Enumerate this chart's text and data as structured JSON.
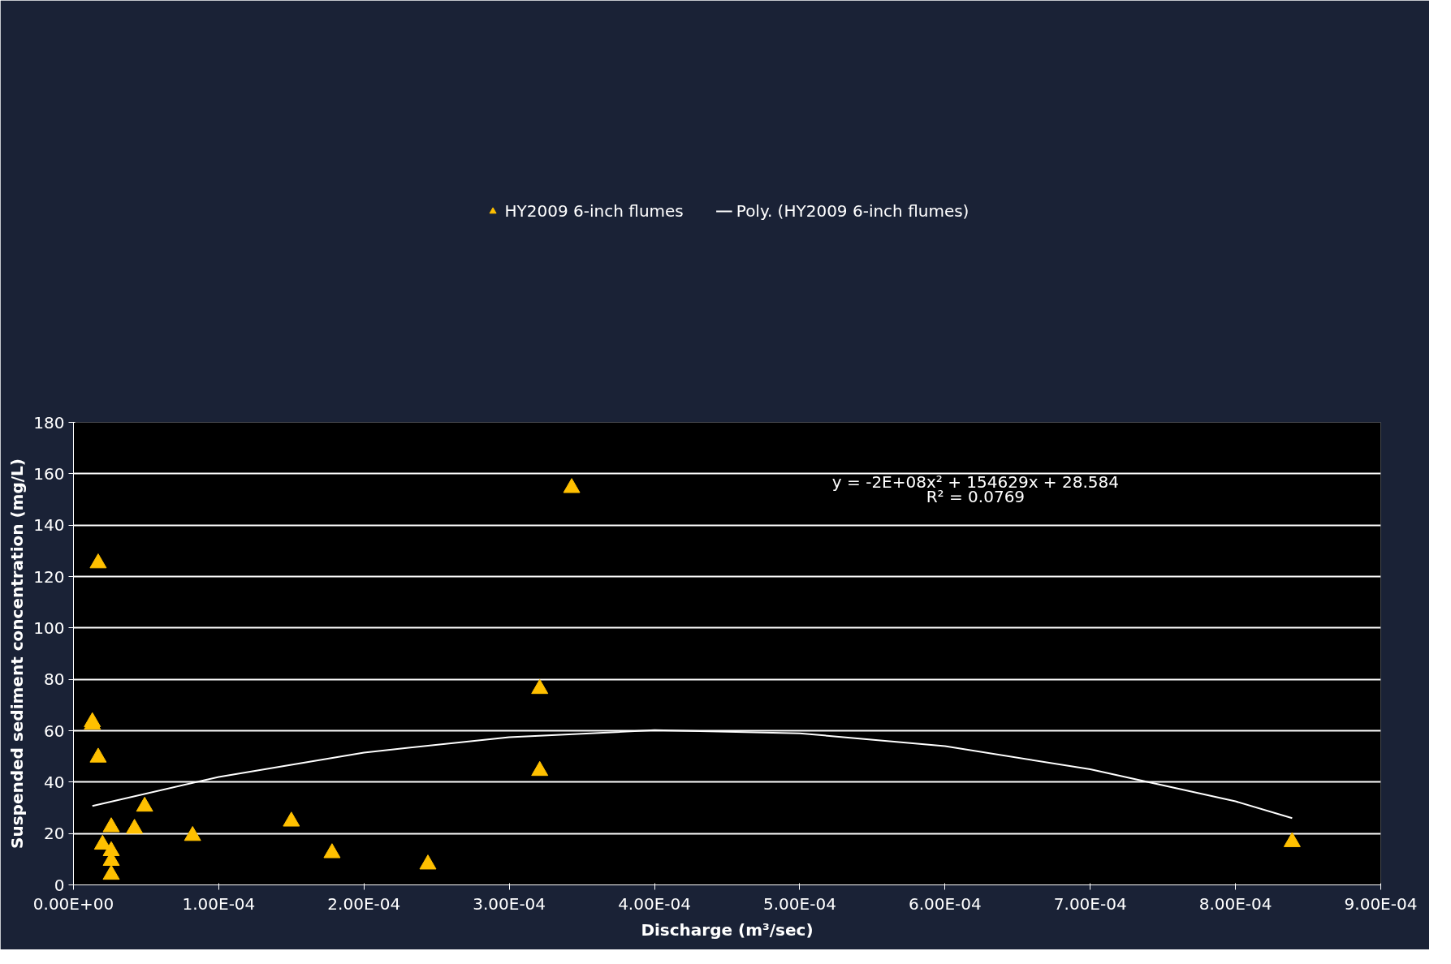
{
  "chart_data": {
    "type": "scatter",
    "xlabel": "Discharge (m³/sec)",
    "ylabel": "Suspended sediment concentration (mg/L)",
    "annotations": [
      "y = -2E+08x² + 154629x + 28.584",
      "R² = 0.0769"
    ],
    "xlim": [
      0,
      0.0009
    ],
    "ylim": [
      0,
      180
    ],
    "xticks": [
      {
        "value": 0,
        "label": "0.00E+00"
      },
      {
        "value": 0.0001,
        "label": "1.00E-04"
      },
      {
        "value": 0.0002,
        "label": "2.00E-04"
      },
      {
        "value": 0.0003,
        "label": "3.00E-04"
      },
      {
        "value": 0.0004,
        "label": "4.00E-04"
      },
      {
        "value": 0.0005,
        "label": "5.00E-04"
      },
      {
        "value": 0.0006,
        "label": "6.00E-04"
      },
      {
        "value": 0.0007,
        "label": "7.00E-04"
      },
      {
        "value": 0.0008,
        "label": "8.00E-04"
      },
      {
        "value": 0.0009,
        "label": "9.00E-04"
      }
    ],
    "yticks": [
      0,
      20,
      40,
      60,
      80,
      100,
      120,
      140,
      160,
      180
    ],
    "grid": "y",
    "legend": "top",
    "series": [
      {
        "name": "HY2009 6-inch flumes",
        "marker": "triangle",
        "color": "#ffc000",
        "x": [
          1.3e-05,
          1.3e-05,
          1.7e-05,
          1.7e-05,
          2e-05,
          2.6e-05,
          2.6e-05,
          2.6e-05,
          2.6e-05,
          4.2e-05,
          4.9e-05,
          8.2e-05,
          0.00015,
          0.000178,
          0.000244,
          0.000321,
          0.000321,
          0.000343,
          0.000839
        ],
        "values": [
          63.4,
          62.4,
          125.2,
          49.6,
          15.7,
          22.5,
          13.2,
          9.4,
          4.0,
          21.9,
          30.5,
          19.1,
          24.7,
          12.4,
          8.0,
          76.3,
          44.4,
          154.5,
          16.7
        ]
      },
      {
        "name": "Poly. (HY2009 6-inch flumes)",
        "type": "line",
        "color": "#ffffff",
        "line_style": "solid",
        "marker": "none",
        "x": [
          1.3e-05,
          0.0001,
          0.0002,
          0.0003,
          0.0004,
          0.0005,
          0.0006,
          0.0007,
          0.0008,
          0.000839
        ],
        "values": [
          30.7,
          42,
          51.5,
          57.5,
          60.2,
          59,
          54,
          45,
          32.5,
          26
        ]
      }
    ]
  }
}
